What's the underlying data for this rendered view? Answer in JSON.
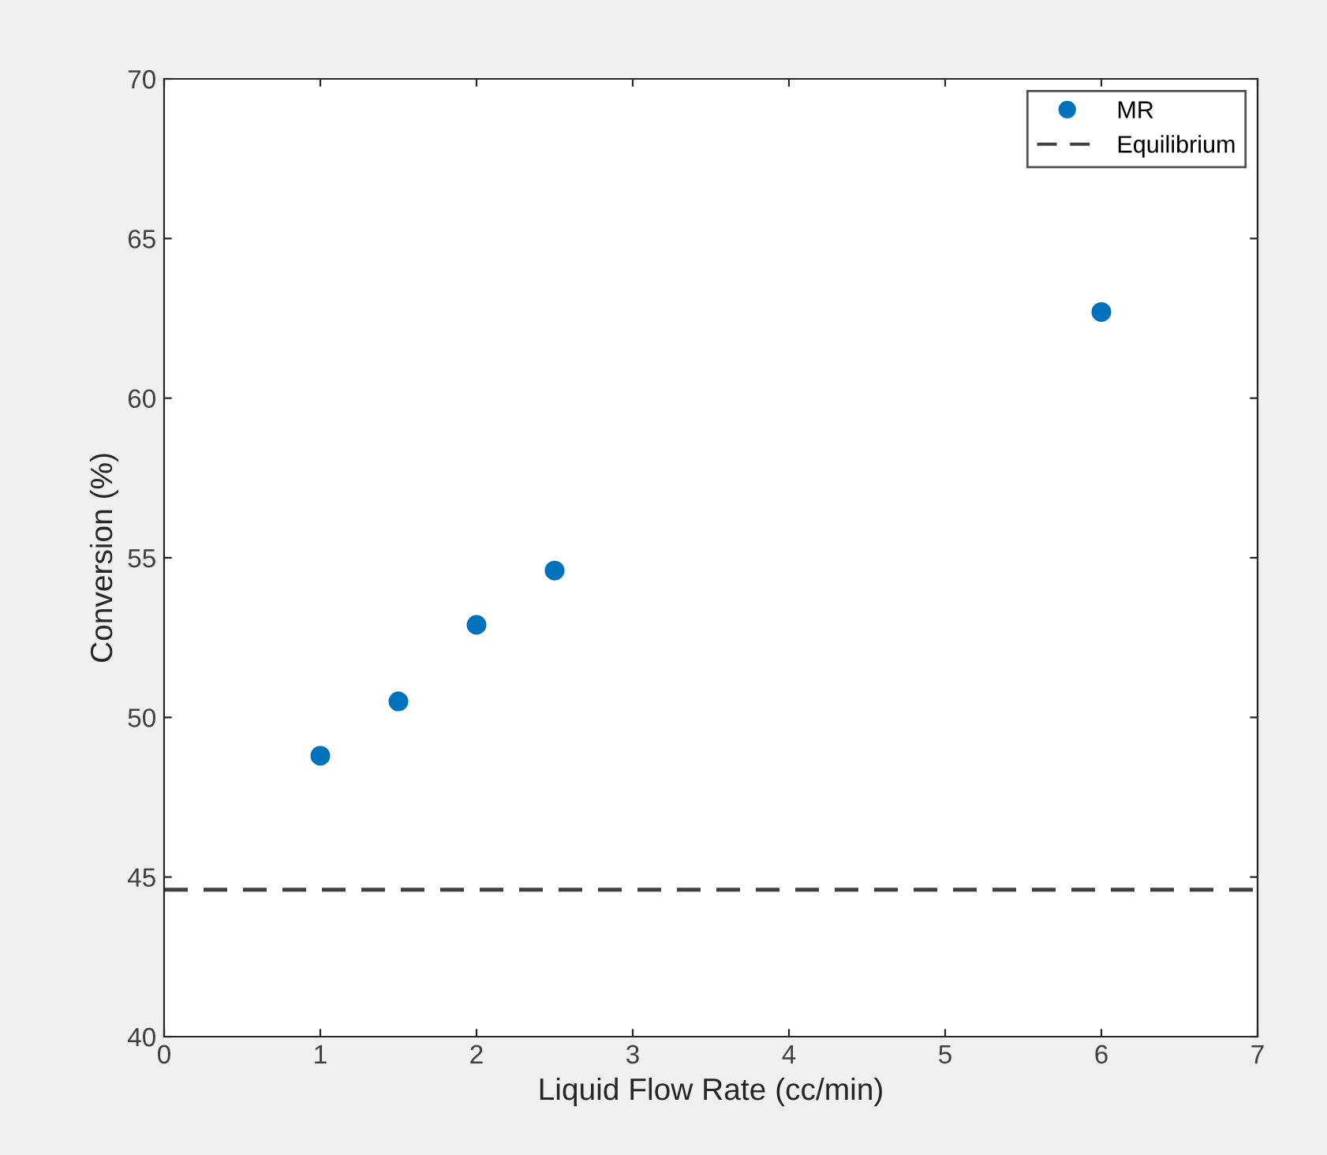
{
  "chart_data": {
    "type": "scatter",
    "xlabel": "Liquid Flow Rate (cc/min)",
    "ylabel": "Conversion (%)",
    "x": [
      1,
      1.5,
      2,
      2.5,
      6
    ],
    "series": [
      {
        "name": "MR",
        "color": "#0072bd",
        "values": [
          48.8,
          50.5,
          52.9,
          54.6,
          62.7
        ]
      }
    ],
    "ref_lines": [
      {
        "axis": "y",
        "value": 44.6,
        "label": "Equilibrium",
        "color": "#404040",
        "line_style": "dashed"
      }
    ],
    "xlim": [
      0,
      7
    ],
    "xticks": [
      0,
      1,
      2,
      3,
      4,
      5,
      6,
      7
    ],
    "ylim": [
      40,
      70
    ],
    "yticks": [
      40,
      45,
      50,
      55,
      60,
      65,
      70
    ],
    "marker": "circle",
    "legend": "top right",
    "grid": false
  }
}
